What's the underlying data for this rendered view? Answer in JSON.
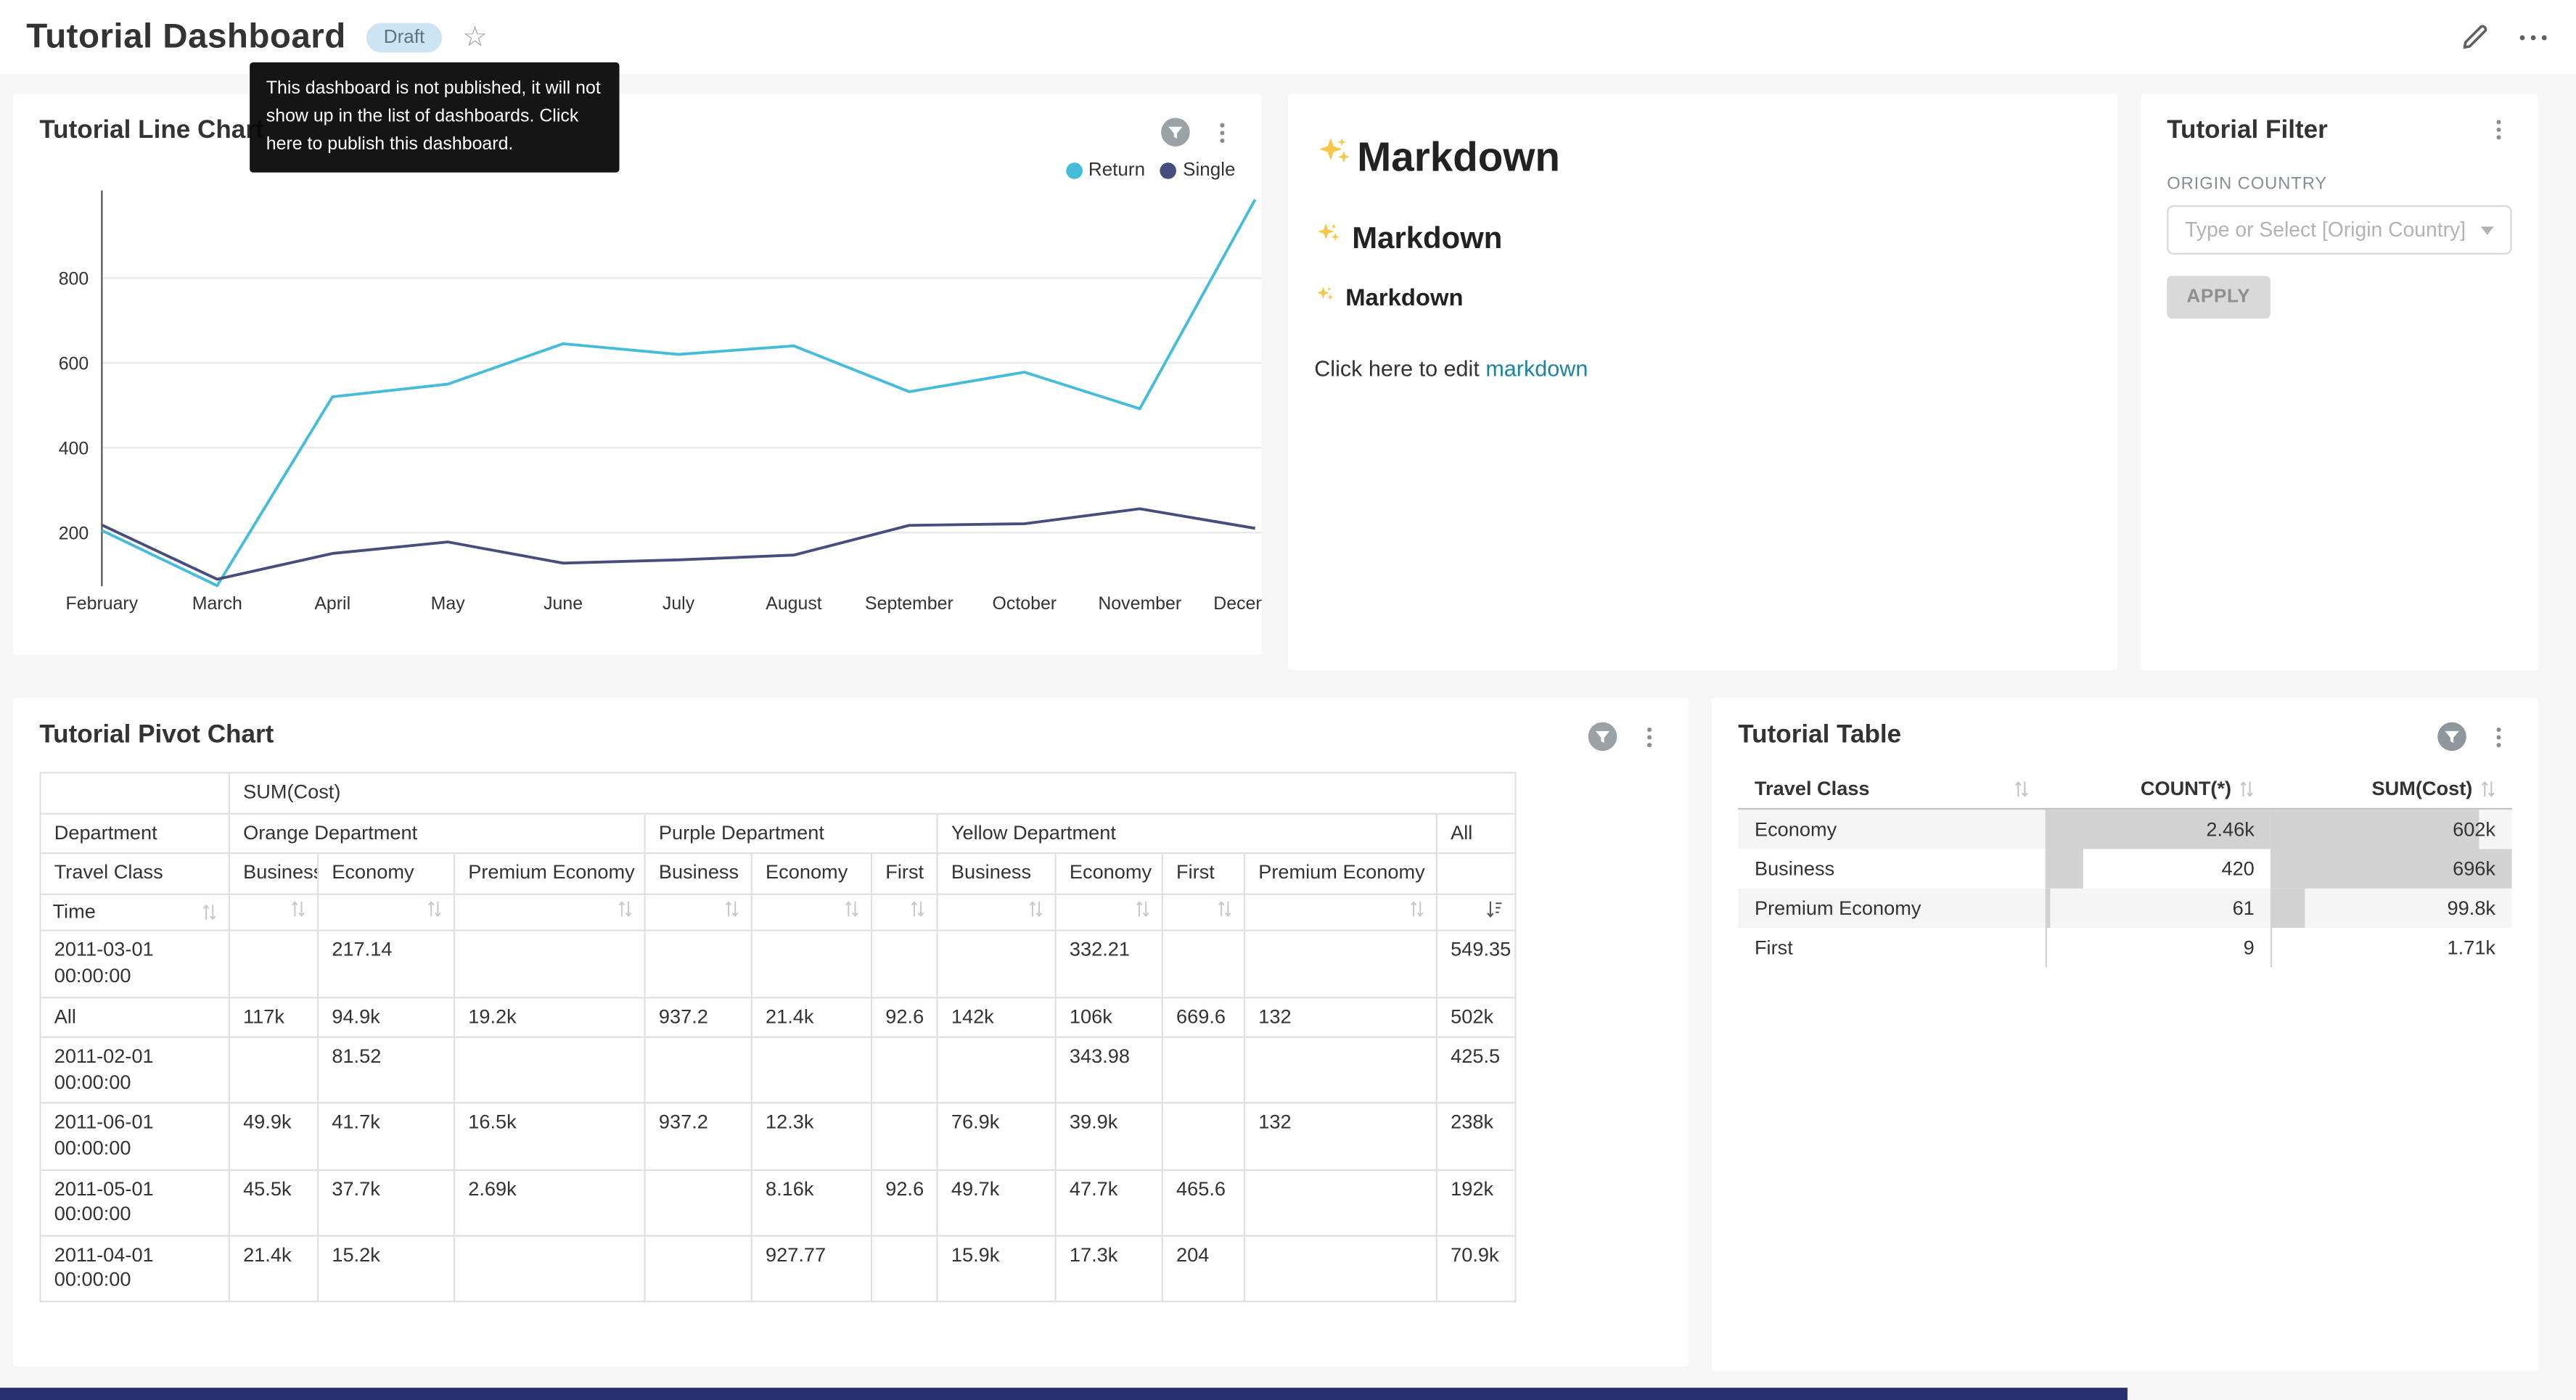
{
  "header": {
    "title": "Tutorial Dashboard",
    "badge": "Draft",
    "tooltip": "This dashboard is not published, it will not show up in the list of dashboards. Click here to publish this dashboard."
  },
  "markdown": {
    "h1": "Markdown",
    "h2": "Markdown",
    "h3": "Markdown",
    "edit_prefix": "Click here to edit ",
    "edit_link": "markdown"
  },
  "filter": {
    "title": "Tutorial Filter",
    "field_label": "ORIGIN COUNTRY",
    "placeholder": "Type or Select [Origin Country]",
    "apply": "APPLY"
  },
  "colors": {
    "accent_link": "#1985a0",
    "footer_strip": "#263070",
    "table_bar": "#d2d2d2"
  },
  "chart_data": [
    {
      "type": "line",
      "title": "Tutorial Line Chart",
      "x": [
        "February",
        "March",
        "April",
        "May",
        "June",
        "July",
        "August",
        "September",
        "October",
        "November",
        "December"
      ],
      "series": [
        {
          "name": "Return",
          "color": "#45BCD9",
          "values": [
            205,
            75,
            520,
            550,
            645,
            620,
            640,
            532,
            578,
            492,
            985
          ]
        },
        {
          "name": "Single",
          "color": "#454E7C",
          "values": [
            218,
            90,
            151,
            178,
            128,
            136,
            147,
            217,
            221,
            256,
            210
          ]
        }
      ],
      "yticks": [
        200,
        400,
        600,
        800
      ],
      "ylim": [
        0,
        1015
      ],
      "legend_position": "top-right",
      "grid": true
    },
    {
      "type": "table",
      "title": "Tutorial Pivot Chart",
      "metric": "SUM(Cost)",
      "row_dim": "Department",
      "col_dim": "Travel Class",
      "sort_dim": "Time",
      "all_label": "All",
      "column_groups": [
        {
          "label": "Orange Department",
          "columns": [
            "Business",
            "Economy",
            "Premium Economy"
          ]
        },
        {
          "label": "Purple Department",
          "columns": [
            "Business",
            "Economy",
            "First"
          ]
        },
        {
          "label": "Yellow Department",
          "columns": [
            "Business",
            "Economy",
            "First",
            "Premium Economy"
          ]
        }
      ],
      "rows": [
        {
          "time": "2011-03-01 00:00:00",
          "values": [
            "",
            "217.14",
            "",
            "",
            "",
            "",
            "",
            "332.21",
            "",
            "",
            "549.35"
          ]
        },
        {
          "time": "All",
          "values": [
            "117k",
            "94.9k",
            "19.2k",
            "937.2",
            "21.4k",
            "92.6",
            "142k",
            "106k",
            "669.6",
            "132",
            "502k"
          ]
        },
        {
          "time": "2011-02-01 00:00:00",
          "values": [
            "",
            "81.52",
            "",
            "",
            "",
            "",
            "",
            "343.98",
            "",
            "",
            "425.5"
          ]
        },
        {
          "time": "2011-06-01 00:00:00",
          "values": [
            "49.9k",
            "41.7k",
            "16.5k",
            "937.2",
            "12.3k",
            "",
            "76.9k",
            "39.9k",
            "",
            "132",
            "238k"
          ]
        },
        {
          "time": "2011-05-01 00:00:00",
          "values": [
            "45.5k",
            "37.7k",
            "2.69k",
            "",
            "8.16k",
            "92.6",
            "49.7k",
            "47.7k",
            "465.6",
            "",
            "192k"
          ]
        },
        {
          "time": "2011-04-01 00:00:00",
          "values": [
            "21.4k",
            "15.2k",
            "",
            "",
            "927.77",
            "",
            "15.9k",
            "17.3k",
            "204",
            "",
            "70.9k"
          ]
        }
      ]
    },
    {
      "type": "table",
      "title": "Tutorial Table",
      "columns": [
        "Travel Class",
        "COUNT(*)",
        "SUM(Cost)"
      ],
      "rows": [
        {
          "travel_class": "Economy",
          "count": "2.46k",
          "count_pct": 100,
          "sum": "602k",
          "sum_pct": 86.5
        },
        {
          "travel_class": "Business",
          "count": "420",
          "count_pct": 17,
          "sum": "696k",
          "sum_pct": 100
        },
        {
          "travel_class": "Premium Economy",
          "count": "61",
          "count_pct": 2.5,
          "sum": "99.8k",
          "sum_pct": 14.3
        },
        {
          "travel_class": "First",
          "count": "9",
          "count_pct": 0.5,
          "sum": "1.71k",
          "sum_pct": 0.3
        }
      ]
    }
  ]
}
